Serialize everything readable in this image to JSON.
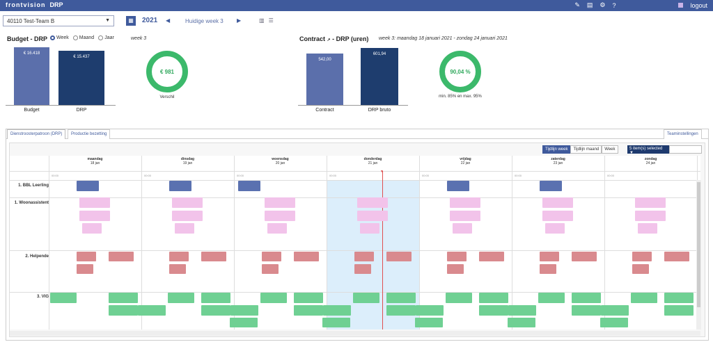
{
  "header": {
    "logo": "frontvision",
    "app": "DRP",
    "logout": "logout"
  },
  "controls": {
    "team": "40110 Test-Team B",
    "year": "2021",
    "week_label": "Huidige week 3"
  },
  "budget": {
    "title": "Budget - DRP",
    "radio": [
      "Week",
      "Maand",
      "Jaar"
    ],
    "selected": "Week",
    "week": "week 3",
    "bars": [
      {
        "label": "Budget",
        "value": "€ 16.418"
      },
      {
        "label": "DRP",
        "value": "€ 15.437"
      }
    ],
    "donut": "€ 981",
    "donut_caption": "Verschil"
  },
  "contract": {
    "title": "Contract",
    "title2": "- DRP (uren)",
    "week": "week 3:  maandag 18 januari 2021 - zondag 24 januari 2021",
    "bars": [
      {
        "label": "Contract",
        "value": "542,00"
      },
      {
        "label": "DRP bruto",
        "value": "601,94"
      }
    ],
    "donut": "90,04 %",
    "donut_caption": "min. 85% en max. 95%"
  },
  "tabs": [
    "Dienstroosterpatroon (DRP)",
    "Productie bezetting"
  ],
  "team_settings": "Teaminstellingen",
  "timeline": {
    "buttons": [
      "Tijdlijn week",
      "Tijdlijn maand",
      "Week"
    ],
    "selected": "5 item(s) selected"
  },
  "days": [
    {
      "name": "maandag",
      "date": "18 jan"
    },
    {
      "name": "dinsdag",
      "date": "19 jan"
    },
    {
      "name": "woensdag",
      "date": "20 jan"
    },
    {
      "name": "donderdag",
      "date": "21 jan"
    },
    {
      "name": "vrijdag",
      "date": "22 jan"
    },
    {
      "name": "zaterdag",
      "date": "23 jan"
    },
    {
      "name": "zondag",
      "date": "24 jan"
    }
  ],
  "time_label": "00:00",
  "rows": [
    "1. BBL Leerling",
    "1. Woonassistent",
    "2. Helpende",
    "3. VIG"
  ],
  "colors": {
    "bar1": "#5b6fab",
    "bar2": "#1e3d6e",
    "green": "#3cb96b",
    "nav": "#3f5a9c"
  }
}
